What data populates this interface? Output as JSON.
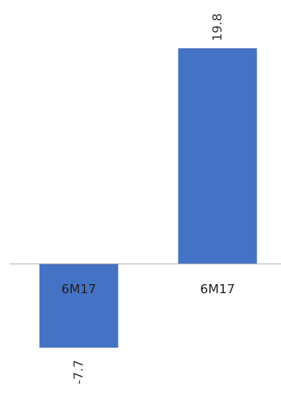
{
  "chart_data": {
    "type": "bar",
    "categories": [
      "6M17",
      "6M17"
    ],
    "values": [
      -7.7,
      19.8
    ],
    "data_labels": [
      "-7.7",
      "19.8"
    ],
    "ylim": [
      -9.7,
      20.0
    ],
    "grid": false,
    "legend": "none",
    "colors": {
      "bar": "#4472C4",
      "axis": "#A6A6A6",
      "text": "#222222"
    }
  }
}
